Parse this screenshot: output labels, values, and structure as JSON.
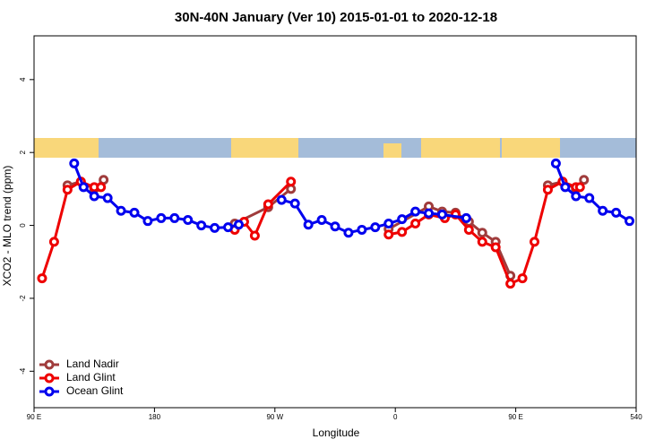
{
  "chart_data": {
    "type": "line",
    "title": "30N-40N January (Ver 10)   2015-01-01 to 2020-12-18",
    "x_label": "Longitude",
    "y_label": "XCO2 - MLO trend (ppm)",
    "xlim": [
      90,
      540
    ],
    "xticks": [
      {
        "value": 90,
        "label": "90 E"
      },
      180,
      {
        "value": 270,
        "label": "90 W"
      },
      {
        "value": 360,
        "label": "0"
      },
      {
        "value": 450,
        "label": "90 E"
      },
      540
    ],
    "ylim": [
      -5,
      5.2
    ],
    "yticks": [
      -4,
      -2,
      0,
      2,
      4
    ],
    "legend": "bottom-left",
    "series": [
      {
        "name": "Land Nadir",
        "color": "#a03c3c",
        "x": [
          115,
          125,
          135,
          142,
          null,
          240,
          265,
          282,
          null,
          355,
          385,
          395,
          405,
          415,
          425,
          435,
          446,
          null,
          474,
          485,
          495,
          501
        ],
        "values": [
          1.1,
          1.2,
          1.0,
          1.25,
          null,
          0.05,
          0.5,
          1.0,
          null,
          -0.1,
          0.52,
          0.38,
          0.35,
          0.1,
          -0.2,
          -0.45,
          -1.38,
          null,
          1.1,
          1.2,
          1.0,
          1.25
        ]
      },
      {
        "name": "Land Glint",
        "color": "#ee0000",
        "x": [
          96,
          105,
          115,
          125,
          135,
          140,
          null,
          240,
          247,
          255,
          265,
          282,
          null,
          355,
          365,
          375,
          385,
          397,
          405,
          415,
          425,
          435,
          446,
          455,
          464,
          474,
          485,
          495,
          498
        ],
        "values": [
          -1.45,
          -0.45,
          0.98,
          1.2,
          1.05,
          1.05,
          null,
          -0.12,
          0.1,
          -0.28,
          0.58,
          1.2,
          null,
          -0.25,
          -0.18,
          0.05,
          0.3,
          0.2,
          0.3,
          -0.12,
          -0.45,
          -0.6,
          -1.6,
          -1.45,
          -0.45,
          0.98,
          1.2,
          1.05,
          1.05
        ]
      },
      {
        "name": "Ocean Glint",
        "color": "#0000ee",
        "x": [
          120,
          127,
          135,
          145,
          155,
          165,
          175,
          185,
          195,
          205,
          215,
          225,
          235,
          243,
          null,
          275,
          285,
          295,
          305,
          315,
          325,
          335,
          345,
          355,
          365,
          375,
          385,
          395,
          413,
          null,
          480,
          487,
          495,
          505,
          515,
          525,
          535
        ],
        "values": [
          1.7,
          1.05,
          0.8,
          0.75,
          0.4,
          0.35,
          0.12,
          0.2,
          0.2,
          0.15,
          0,
          -0.07,
          -0.05,
          0.02,
          null,
          0.7,
          0.6,
          0.02,
          0.15,
          -0.03,
          -0.2,
          -0.12,
          -0.05,
          0.05,
          0.17,
          0.38,
          0.33,
          0.3,
          0.2,
          null,
          1.7,
          1.05,
          0.8,
          0.75,
          0.4,
          0.35,
          0.12
        ]
      }
    ]
  }
}
